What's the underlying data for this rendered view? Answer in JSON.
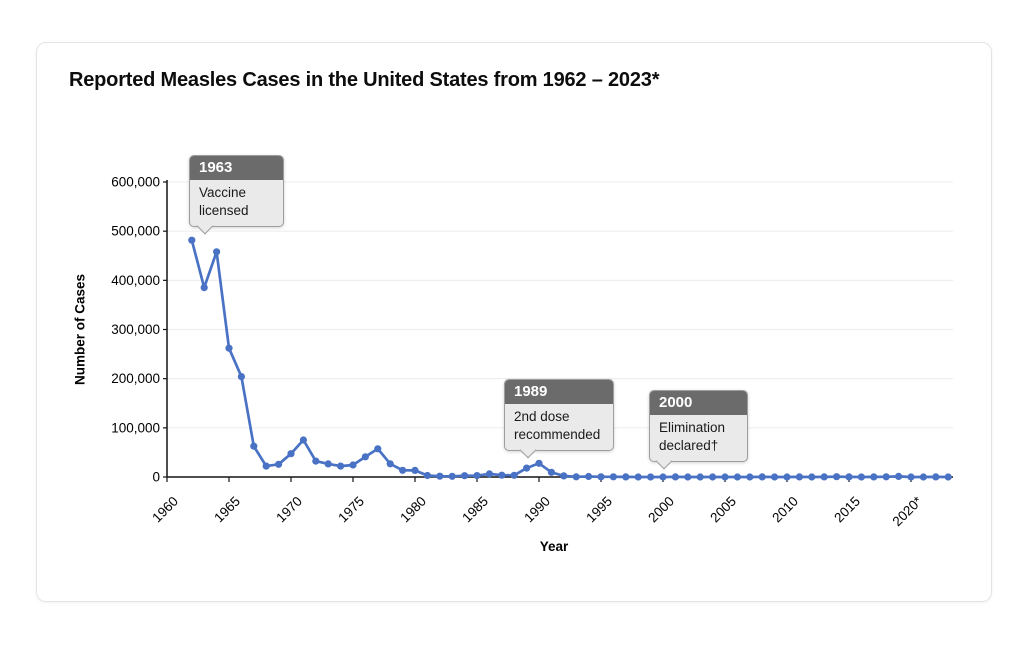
{
  "chart_data": {
    "type": "line",
    "title": "Reported Measles Cases in the United States from 1962 – 2023*",
    "xlabel": "Year",
    "ylabel": "Number of Cases",
    "xlim": [
      1960,
      2024
    ],
    "ylim": [
      0,
      600000
    ],
    "grid": "horizontal",
    "legend": "none",
    "colors": {
      "line": "#4a72c4",
      "grid": "#ececec",
      "axis": "#141414",
      "callout_header_bg": "#6b6b6b",
      "callout_body_bg": "#eaeaea",
      "callout_border": "#9e9e9e"
    },
    "y_ticks": [
      {
        "value": 0,
        "label": "0"
      },
      {
        "value": 100000,
        "label": "100,000"
      },
      {
        "value": 200000,
        "label": "200,000"
      },
      {
        "value": 300000,
        "label": "300,000"
      },
      {
        "value": 400000,
        "label": "400,000"
      },
      {
        "value": 500000,
        "label": "500,000"
      },
      {
        "value": 600000,
        "label": "600,000"
      }
    ],
    "x_ticks": [
      {
        "year": 1960,
        "label": "1960"
      },
      {
        "year": 1965,
        "label": "1965"
      },
      {
        "year": 1970,
        "label": "1970"
      },
      {
        "year": 1975,
        "label": "1975"
      },
      {
        "year": 1980,
        "label": "1980"
      },
      {
        "year": 1985,
        "label": "1985"
      },
      {
        "year": 1990,
        "label": "1990"
      },
      {
        "year": 1995,
        "label": "1995"
      },
      {
        "year": 2000,
        "label": "2000"
      },
      {
        "year": 2005,
        "label": "2005"
      },
      {
        "year": 2010,
        "label": "2010"
      },
      {
        "year": 2015,
        "label": "2015"
      },
      {
        "year": 2020,
        "label": "2020*"
      }
    ],
    "series": [
      {
        "name": "Reported measles cases",
        "x": [
          1962,
          1963,
          1964,
          1965,
          1966,
          1967,
          1968,
          1969,
          1970,
          1971,
          1972,
          1973,
          1974,
          1975,
          1976,
          1977,
          1978,
          1979,
          1980,
          1981,
          1982,
          1983,
          1984,
          1985,
          1986,
          1987,
          1988,
          1989,
          1990,
          1991,
          1992,
          1993,
          1994,
          1995,
          1996,
          1997,
          1998,
          1999,
          2000,
          2001,
          2002,
          2003,
          2004,
          2005,
          2006,
          2007,
          2008,
          2009,
          2010,
          2011,
          2012,
          2013,
          2014,
          2015,
          2016,
          2017,
          2018,
          2019,
          2020,
          2021,
          2022,
          2023
        ],
        "values": [
          481530,
          385156,
          458083,
          261904,
          204136,
          62705,
          22231,
          25826,
          47351,
          75290,
          32275,
          26690,
          22094,
          24374,
          41126,
          57345,
          26871,
          13597,
          13506,
          3124,
          1714,
          1497,
          2587,
          2822,
          6282,
          3655,
          3396,
          18193,
          27786,
          9643,
          2237,
          312,
          963,
          309,
          508,
          138,
          100,
          100,
          86,
          116,
          44,
          56,
          37,
          66,
          55,
          43,
          140,
          71,
          63,
          220,
          55,
          187,
          667,
          188,
          86,
          120,
          375,
          1282,
          13,
          49,
          121,
          59
        ]
      }
    ],
    "annotations": [
      {
        "year": 1963,
        "label": "1963",
        "text": "Vaccine licensed"
      },
      {
        "year": 1989,
        "label": "1989",
        "text": "2nd dose recommended"
      },
      {
        "year": 2000,
        "label": "2000",
        "text": "Elimination declared†"
      }
    ]
  }
}
